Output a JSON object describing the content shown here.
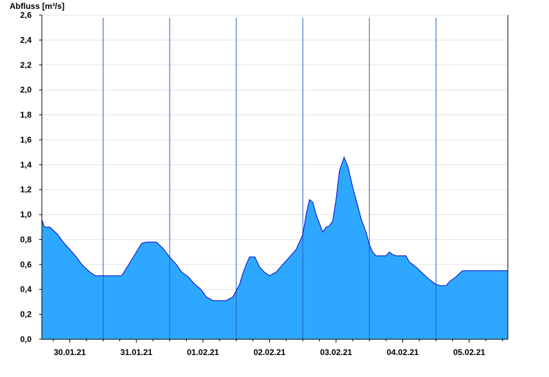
{
  "chart_data": {
    "type": "area",
    "title": "",
    "ylabel": "Abfluss [m³/s]",
    "xlabel": "",
    "ylim": [
      0,
      2.6
    ],
    "y_ticks": [
      "0,0",
      "0,2",
      "0,4",
      "0,6",
      "0,8",
      "1,0",
      "1,2",
      "1,4",
      "1,6",
      "1,8",
      "2,0",
      "2,2",
      "2,4",
      "2,6"
    ],
    "x_ticks": [
      "30.01.21",
      "31.01.21",
      "01.02.21",
      "02.02.21",
      "03.02.21",
      "04.02.21",
      "05.02.21"
    ],
    "x_range_days": [
      -0.42,
      6.58
    ],
    "grid": true,
    "fill_color": "#2ea8ff",
    "line_color": "#0000cc",
    "day_line_color": "#1e5bbf",
    "series": [
      {
        "x": [
          -0.42,
          -0.38,
          -0.3,
          -0.18,
          -0.1,
          0.0,
          0.1,
          0.18,
          0.3,
          0.38,
          0.5,
          0.6,
          0.7,
          0.78,
          0.85,
          0.92,
          1.0,
          1.08,
          1.15,
          1.22,
          1.3,
          1.4,
          1.5,
          1.6,
          1.68,
          1.78,
          1.88,
          1.95,
          2.0,
          2.05,
          2.15,
          2.25,
          2.35,
          2.45,
          2.55,
          2.6,
          2.65,
          2.7,
          2.78,
          2.85,
          2.92,
          3.0,
          3.1,
          3.2,
          3.3,
          3.4,
          3.5,
          3.55,
          3.6,
          3.65,
          3.7,
          3.75,
          3.8,
          3.85,
          3.9,
          3.95,
          4.0,
          4.05,
          4.12,
          4.18,
          4.25,
          4.32,
          4.38,
          4.45,
          4.5,
          4.55,
          4.6,
          4.65,
          4.7,
          4.75,
          4.8,
          4.85,
          4.9,
          4.95,
          5.0,
          5.05,
          5.1,
          5.2,
          5.3,
          5.4,
          5.5,
          5.58,
          5.65,
          5.72,
          5.8,
          5.9,
          6.0,
          6.1,
          6.2,
          6.3,
          6.4,
          6.5,
          6.58
        ],
        "y": [
          0.96,
          0.9,
          0.9,
          0.84,
          0.78,
          0.72,
          0.66,
          0.6,
          0.54,
          0.51,
          0.51,
          0.51,
          0.51,
          0.51,
          0.57,
          0.63,
          0.7,
          0.77,
          0.78,
          0.78,
          0.78,
          0.73,
          0.66,
          0.6,
          0.54,
          0.5,
          0.44,
          0.41,
          0.38,
          0.34,
          0.31,
          0.31,
          0.31,
          0.34,
          0.44,
          0.53,
          0.6,
          0.66,
          0.66,
          0.58,
          0.54,
          0.51,
          0.54,
          0.6,
          0.66,
          0.72,
          0.84,
          1.0,
          1.12,
          1.1,
          1.0,
          0.93,
          0.86,
          0.9,
          0.91,
          0.95,
          1.12,
          1.35,
          1.46,
          1.38,
          1.22,
          1.08,
          0.96,
          0.86,
          0.76,
          0.7,
          0.67,
          0.67,
          0.67,
          0.67,
          0.7,
          0.68,
          0.67,
          0.67,
          0.67,
          0.67,
          0.62,
          0.58,
          0.53,
          0.48,
          0.44,
          0.43,
          0.43,
          0.47,
          0.5,
          0.55,
          0.55,
          0.55,
          0.55,
          0.55,
          0.55,
          0.55,
          0.55
        ]
      }
    ]
  }
}
